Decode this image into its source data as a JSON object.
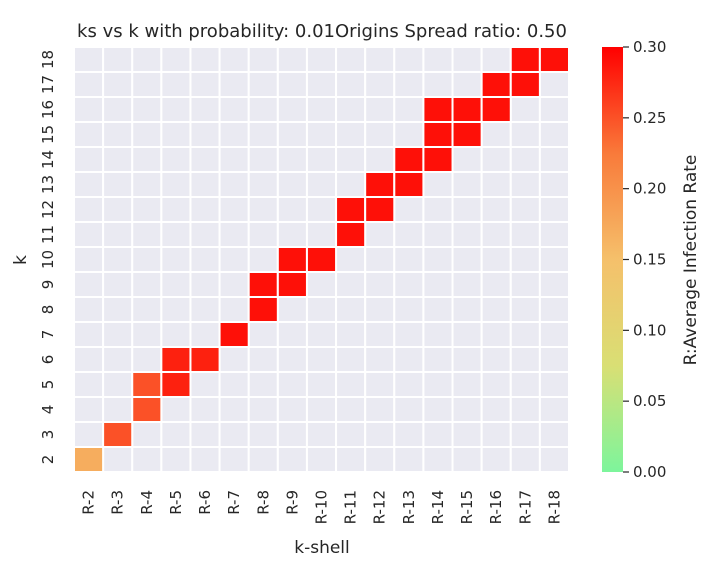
{
  "chart_data": {
    "type": "heatmap",
    "title": "ks vs k with probability: 0.01Origins Spread ratio: 0.50",
    "xlabel": "k-shell",
    "ylabel": "k",
    "x_categories": [
      "R-2",
      "R-3",
      "R-4",
      "R-5",
      "R-6",
      "R-7",
      "R-8",
      "R-9",
      "R-10",
      "R-11",
      "R-12",
      "R-13",
      "R-14",
      "R-15",
      "R-16",
      "R-17",
      "R-18"
    ],
    "y_categories": [
      "2",
      "3",
      "4",
      "5",
      "6",
      "7",
      "8",
      "9",
      "10",
      "11",
      "12",
      "13",
      "14",
      "15",
      "16",
      "17",
      "18"
    ],
    "colorbar": {
      "label": "R:Average Infection Rate",
      "range": [
        0.0,
        0.3
      ],
      "ticks": [
        "0.00",
        "0.05",
        "0.10",
        "0.15",
        "0.20",
        "0.25",
        "0.30"
      ],
      "colors": [
        "#7df59c",
        "#d9df74",
        "#f5c06b",
        "#f97a3a",
        "#ff0000"
      ]
    },
    "cells": [
      {
        "x": "R-2",
        "y": "2",
        "value": 0.17
      },
      {
        "x": "R-3",
        "y": "3",
        "value": 0.25
      },
      {
        "x": "R-4",
        "y": "4",
        "value": 0.25
      },
      {
        "x": "R-4",
        "y": "5",
        "value": 0.25
      },
      {
        "x": "R-5",
        "y": "5",
        "value": 0.28
      },
      {
        "x": "R-5",
        "y": "6",
        "value": 0.28
      },
      {
        "x": "R-6",
        "y": "6",
        "value": 0.28
      },
      {
        "x": "R-7",
        "y": "7",
        "value": 0.29
      },
      {
        "x": "R-8",
        "y": "8",
        "value": 0.29
      },
      {
        "x": "R-8",
        "y": "9",
        "value": 0.29
      },
      {
        "x": "R-9",
        "y": "9",
        "value": 0.29
      },
      {
        "x": "R-9",
        "y": "10",
        "value": 0.29
      },
      {
        "x": "R-10",
        "y": "10",
        "value": 0.29
      },
      {
        "x": "R-11",
        "y": "11",
        "value": 0.29
      },
      {
        "x": "R-11",
        "y": "12",
        "value": 0.29
      },
      {
        "x": "R-12",
        "y": "12",
        "value": 0.29
      },
      {
        "x": "R-12",
        "y": "13",
        "value": 0.29
      },
      {
        "x": "R-13",
        "y": "13",
        "value": 0.29
      },
      {
        "x": "R-13",
        "y": "14",
        "value": 0.29
      },
      {
        "x": "R-14",
        "y": "14",
        "value": 0.29
      },
      {
        "x": "R-14",
        "y": "15",
        "value": 0.29
      },
      {
        "x": "R-14",
        "y": "16",
        "value": 0.29
      },
      {
        "x": "R-15",
        "y": "15",
        "value": 0.29
      },
      {
        "x": "R-15",
        "y": "16",
        "value": 0.29
      },
      {
        "x": "R-16",
        "y": "16",
        "value": 0.29
      },
      {
        "x": "R-16",
        "y": "17",
        "value": 0.29
      },
      {
        "x": "R-17",
        "y": "17",
        "value": 0.29
      },
      {
        "x": "R-17",
        "y": "18",
        "value": 0.29
      },
      {
        "x": "R-18",
        "y": "18",
        "value": 0.29
      }
    ],
    "grid": true,
    "legend": "colorbar-right"
  }
}
